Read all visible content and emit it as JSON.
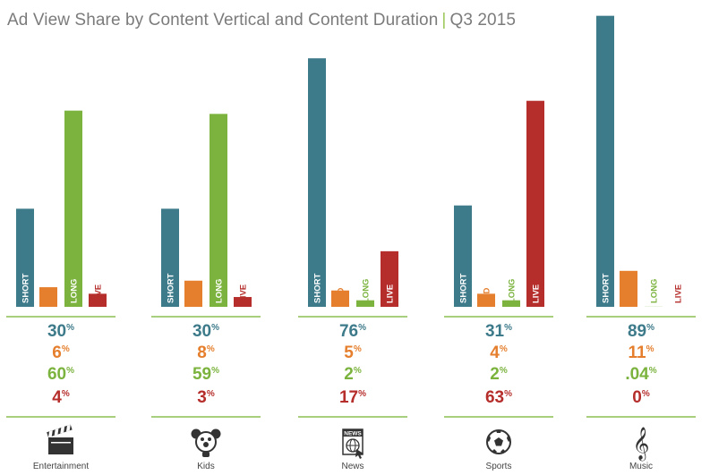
{
  "chart_data": {
    "type": "bar",
    "title": "Ad View Share by Content Vertical and Content Duration",
    "subtitle": "Q3 2015",
    "value_suffix": "%",
    "categories": [
      "Entertainment",
      "Kids",
      "News",
      "Sports",
      "Music"
    ],
    "category_icons": [
      "clapperboard-icon",
      "kids-mascot-icon",
      "news-globe-icon",
      "soccer-ball-icon",
      "treble-clef-icon"
    ],
    "series": [
      {
        "name": "SHORT",
        "color": "#3d7a8a",
        "values": [
          30,
          30,
          76,
          31,
          89
        ],
        "labels": [
          "30",
          "30",
          "76",
          "31",
          "89"
        ]
      },
      {
        "name": "MID",
        "color": "#e57f2e",
        "values": [
          6,
          8,
          5,
          4,
          11
        ],
        "labels": [
          "6",
          "8",
          "5",
          "4",
          "11"
        ]
      },
      {
        "name": "LONG",
        "color": "#7bb33e",
        "values": [
          60,
          59,
          2,
          2,
          0.04
        ],
        "labels": [
          "60",
          "59",
          "2",
          "2",
          ".04"
        ]
      },
      {
        "name": "LIVE",
        "color": "#b52e2b",
        "values": [
          4,
          3,
          17,
          63,
          0
        ],
        "labels": [
          "4",
          "3",
          "17",
          "63",
          "0"
        ]
      }
    ],
    "ylim": [
      0,
      90
    ],
    "grid": false,
    "legend": "none"
  }
}
